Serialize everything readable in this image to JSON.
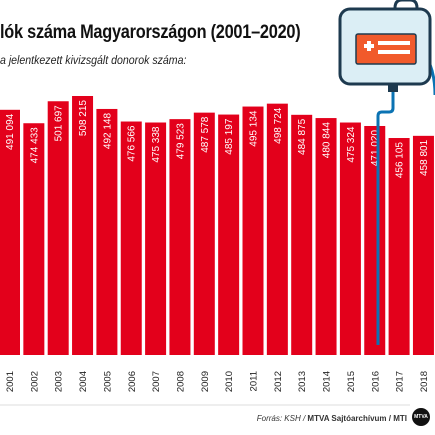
{
  "header": {
    "title": "lók száma Magyarországon (2001–2020)",
    "subtitle": "a jelentkezett kivizsgált donorok száma:"
  },
  "footer": {
    "source_prefix": "Forrás: KSH / ",
    "source_bold": "MTVA Sajtóarchívum / MTI",
    "logo_text": "MTVA"
  },
  "colors": {
    "bar": "#e3001b",
    "bar_light": "#ff4a55",
    "bag_outline": "#1d3a4f",
    "bag_label": "#f15a2b",
    "bag_screen": "#dbeef5",
    "tube": "#0b73b3"
  },
  "icons": [
    "blood-bag-icon",
    "first-aid-cross-icon"
  ],
  "chart_data": {
    "type": "bar",
    "title": "lók száma Magyarországon (2001–2020)",
    "subtitle": "a jelentkezett kivizsgált donorok száma:",
    "categories": [
      "2001",
      "2002",
      "2003",
      "2004",
      "2005",
      "2006",
      "2007",
      "2008",
      "2009",
      "2010",
      "2011",
      "2012",
      "2013",
      "2014",
      "2015",
      "2016",
      "2017",
      "2018"
    ],
    "values": [
      491094,
      474433,
      501697,
      508215,
      492148,
      476566,
      475338,
      479523,
      487578,
      485197,
      495134,
      498724,
      484875,
      480844,
      475324,
      471020,
      456105,
      458801
    ],
    "labels": [
      "491 094",
      "474 433",
      "501 697",
      "508 215",
      "492 148",
      "476 566",
      "475 338",
      "479 523",
      "487 578",
      "485 197",
      "495 134",
      "498 724",
      "484 875",
      "480 844",
      "475 324",
      "471 020",
      "456 105",
      "458 801"
    ],
    "grid": false,
    "legend": "none"
  }
}
